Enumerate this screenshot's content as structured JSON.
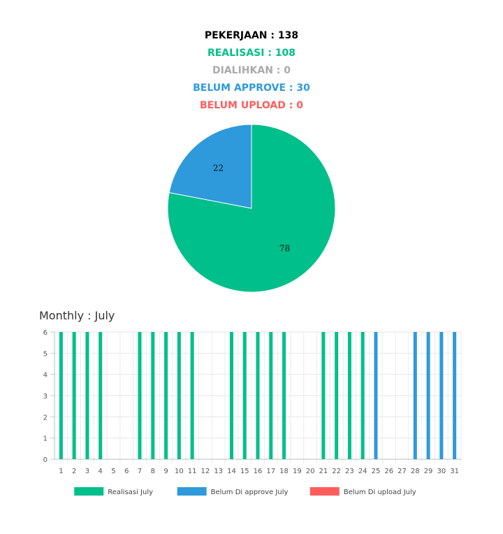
{
  "summary": {
    "total": "PEKERJAAN : 138",
    "realisasi": "REALISASI : 108",
    "dialihkan": "DIALIHKAN : 0",
    "belum_approve": "BELUM APPROVE : 30",
    "belum_upload": "BELUM UPLOAD : 0"
  },
  "colors": {
    "realisasi": "#00bf8a",
    "dialihkan": "#aaaaaa",
    "belum_approve": "#2e9adb",
    "belum_upload": "#ff5d5d"
  },
  "monthly_title": "Monthly : July",
  "chart_data": [
    {
      "type": "pie",
      "labels": [
        "Realisasi",
        "Belum Approve"
      ],
      "values": [
        78,
        22
      ],
      "colors": [
        "#00bf8a",
        "#2e9adb"
      ]
    },
    {
      "type": "bar",
      "title": "Monthly : July",
      "categories": [
        "1",
        "2",
        "3",
        "4",
        "5",
        "6",
        "7",
        "8",
        "9",
        "10",
        "11",
        "12",
        "13",
        "14",
        "15",
        "16",
        "17",
        "18",
        "19",
        "20",
        "21",
        "22",
        "23",
        "24",
        "25",
        "26",
        "27",
        "28",
        "29",
        "30",
        "31"
      ],
      "ylim": [
        0,
        6
      ],
      "yticks": [
        0,
        1,
        2,
        3,
        4,
        5,
        6
      ],
      "grid": true,
      "legend_position": "bottom",
      "series": [
        {
          "name": "Realisasi July",
          "color": "#00bf8a",
          "values": [
            6,
            6,
            6,
            6,
            0,
            0,
            6,
            6,
            6,
            6,
            6,
            0,
            0,
            6,
            6,
            6,
            6,
            6,
            0,
            0,
            6,
            6,
            6,
            6,
            0,
            0,
            0,
            0,
            0,
            0,
            0
          ]
        },
        {
          "name": "Belum Di approve July",
          "color": "#2e9adb",
          "values": [
            0,
            0,
            0,
            0,
            0,
            0,
            0,
            0,
            0,
            0,
            0,
            0,
            0,
            0,
            0,
            0,
            0,
            0,
            0,
            0,
            0,
            0,
            0,
            0,
            6,
            0,
            0,
            6,
            6,
            6,
            6
          ]
        },
        {
          "name": "Belum Di upload July",
          "color": "#ff5d5d",
          "values": [
            0,
            0,
            0,
            0,
            0,
            0,
            0,
            0,
            0,
            0,
            0,
            0,
            0,
            0,
            0,
            0,
            0,
            0,
            0,
            0,
            0,
            0,
            0,
            0,
            0,
            0,
            0,
            0,
            0,
            0,
            0
          ]
        }
      ]
    }
  ]
}
